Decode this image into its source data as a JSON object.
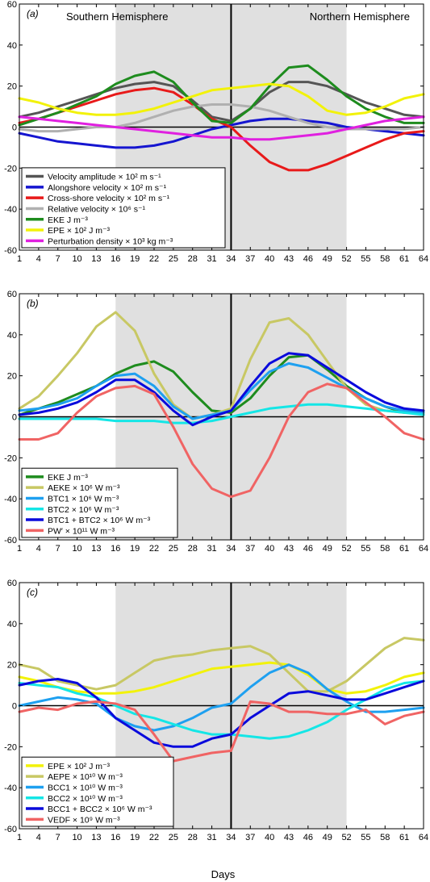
{
  "figure": {
    "xlabel": "Days",
    "x_ticks": [
      1,
      4,
      7,
      10,
      13,
      16,
      19,
      22,
      25,
      28,
      31,
      34,
      37,
      40,
      43,
      46,
      49,
      52,
      55,
      58,
      61,
      64
    ],
    "xlim": [
      1,
      64
    ],
    "ylim": [
      -60,
      60
    ],
    "y_ticks": [
      -60,
      -40,
      -20,
      0,
      20,
      40,
      60
    ],
    "shaded_days": [
      [
        16,
        34
      ],
      [
        34,
        52
      ]
    ],
    "divider_day": 34,
    "colors": {
      "shade": "#e0e0e0",
      "axis": "#000000"
    }
  },
  "chart_data": [
    {
      "type": "line",
      "panel_label": "(a)",
      "hemisphere_labels": [
        "Southern Hemisphere",
        "Northern Hemisphere"
      ],
      "legend_position": "bottom-left",
      "ylim": [
        -60,
        60
      ],
      "x": [
        1,
        4,
        7,
        10,
        13,
        16,
        19,
        22,
        25,
        28,
        31,
        34,
        37,
        40,
        43,
        46,
        49,
        52,
        55,
        58,
        61,
        64
      ],
      "series": [
        {
          "name": "Velocity amplitude × 10² m s⁻¹",
          "color": "#555555",
          "values": [
            5,
            7,
            10,
            13,
            16,
            19,
            21,
            22,
            20,
            13,
            5,
            3,
            9,
            17,
            22,
            22,
            20,
            16,
            12,
            9,
            6,
            5
          ]
        },
        {
          "name": "Alongshore velocity × 10² m s⁻¹",
          "color": "#1515d0",
          "values": [
            -3,
            -5,
            -7,
            -8,
            -9,
            -10,
            -10,
            -9,
            -7,
            -4,
            -1,
            1,
            3,
            4,
            4,
            3,
            2,
            0,
            -1,
            -2,
            -3,
            -4
          ]
        },
        {
          "name": "Cross-shore velocity × 10² m s⁻¹",
          "color": "#e81a1a",
          "values": [
            2,
            4,
            7,
            10,
            13,
            16,
            18,
            19,
            17,
            11,
            4,
            0,
            -9,
            -17,
            -21,
            -21,
            -18,
            -14,
            -10,
            -6,
            -3,
            -2
          ]
        },
        {
          "name": "Relative velocity × 10⁶ s⁻¹",
          "color": "#b0b0b0",
          "values": [
            -1,
            -2,
            -2,
            -1,
            0,
            0,
            2,
            5,
            8,
            10,
            11,
            11,
            10,
            8,
            5,
            2,
            0,
            -1,
            -1,
            -1,
            -1,
            0
          ]
        },
        {
          "name": "EKE J m⁻³",
          "color": "#1e8c1e",
          "values": [
            1,
            4,
            7,
            11,
            15,
            21,
            25,
            27,
            22,
            12,
            3,
            2,
            9,
            20,
            29,
            30,
            23,
            15,
            9,
            5,
            2,
            2
          ]
        },
        {
          "name": "EPE × 10² J m⁻³",
          "color": "#f2f20a",
          "values": [
            14,
            12,
            9,
            7,
            6,
            6,
            7,
            9,
            12,
            15,
            18,
            19,
            20,
            21,
            20,
            15,
            8,
            6,
            7,
            10,
            14,
            16
          ]
        },
        {
          "name": "Perturbation density × 10³ kg m⁻³",
          "color": "#e020e0",
          "values": [
            5,
            4,
            3,
            2,
            1,
            0,
            -1,
            -2,
            -3,
            -4,
            -5,
            -5,
            -6,
            -6,
            -5,
            -4,
            -3,
            -1,
            1,
            3,
            4,
            5
          ]
        }
      ]
    },
    {
      "type": "line",
      "panel_label": "(b)",
      "legend_position": "bottom-left",
      "ylim": [
        -60,
        60
      ],
      "x": [
        1,
        4,
        7,
        10,
        13,
        16,
        19,
        22,
        25,
        28,
        31,
        34,
        37,
        40,
        43,
        46,
        49,
        52,
        55,
        58,
        61,
        64
      ],
      "series": [
        {
          "name": "EKE J m⁻³",
          "color": "#1e8c1e",
          "values": [
            1,
            4,
            7,
            11,
            15,
            21,
            25,
            27,
            22,
            12,
            3,
            2,
            9,
            20,
            29,
            30,
            23,
            15,
            9,
            5,
            2,
            2
          ]
        },
        {
          "name": "AEKE × 10⁶ W m⁻³",
          "color": "#c8c864",
          "values": [
            4,
            10,
            20,
            31,
            44,
            51,
            42,
            21,
            6,
            -1,
            1,
            4,
            28,
            46,
            48,
            40,
            27,
            14,
            6,
            3,
            2,
            2
          ]
        },
        {
          "name": "BTC1 × 10⁶ W m⁻³",
          "color": "#1ea0f0",
          "values": [
            3,
            4,
            6,
            9,
            15,
            20,
            21,
            15,
            5,
            -1,
            1,
            3,
            13,
            22,
            26,
            24,
            19,
            14,
            9,
            5,
            3,
            2
          ]
        },
        {
          "name": "BTC2 × 10⁶ W m⁻³",
          "color": "#14e6e6",
          "values": [
            -1,
            -1,
            -1,
            -1,
            -1,
            -2,
            -2,
            -2,
            -3,
            -3,
            -2,
            0,
            2,
            4,
            5,
            6,
            6,
            5,
            4,
            3,
            2,
            1
          ]
        },
        {
          "name": "BTC1 + BTC2 × 10⁶ W m⁻³",
          "color": "#0a0adc",
          "values": [
            1,
            2,
            4,
            7,
            12,
            18,
            18,
            12,
            3,
            -4,
            0,
            3,
            15,
            26,
            31,
            30,
            24,
            18,
            12,
            7,
            4,
            3
          ]
        },
        {
          "name": "PW′ × 10¹¹ W m⁻³",
          "color": "#f06464",
          "values": [
            -11,
            -11,
            -8,
            2,
            10,
            14,
            15,
            11,
            -5,
            -23,
            -35,
            -39,
            -36,
            -20,
            0,
            12,
            16,
            14,
            7,
            0,
            -8,
            -11
          ]
        }
      ]
    },
    {
      "type": "line",
      "panel_label": "(c)",
      "legend_position": "bottom-left",
      "ylim": [
        -60,
        60
      ],
      "x": [
        1,
        4,
        7,
        10,
        13,
        16,
        19,
        22,
        25,
        28,
        31,
        34,
        37,
        40,
        43,
        46,
        49,
        52,
        55,
        58,
        61,
        64
      ],
      "series": [
        {
          "name": "EPE × 10² J m⁻³",
          "color": "#f2f20a",
          "values": [
            14,
            12,
            9,
            7,
            6,
            6,
            7,
            9,
            12,
            15,
            18,
            19,
            20,
            21,
            20,
            15,
            8,
            6,
            7,
            10,
            14,
            16
          ]
        },
        {
          "name": "AEPE × 10¹⁰ W m⁻³",
          "color": "#c8c864",
          "values": [
            20,
            18,
            12,
            10,
            8,
            10,
            16,
            22,
            24,
            25,
            27,
            28,
            29,
            25,
            16,
            7,
            7,
            12,
            20,
            28,
            33,
            32
          ]
        },
        {
          "name": "BCC1 × 10¹⁰ W m⁻³",
          "color": "#1ea0f0",
          "values": [
            0,
            2,
            4,
            3,
            1,
            -6,
            -10,
            -12,
            -10,
            -6,
            -1,
            1,
            9,
            16,
            20,
            16,
            8,
            2,
            -3,
            -3,
            -2,
            -1
          ]
        },
        {
          "name": "BCC2 × 10¹⁰ W m⁻³",
          "color": "#14e6e6",
          "values": [
            11,
            10,
            9,
            6,
            4,
            0,
            -4,
            -6,
            -9,
            -12,
            -14,
            -14,
            -15,
            -16,
            -15,
            -12,
            -8,
            -2,
            3,
            8,
            11,
            12
          ]
        },
        {
          "name": "BCC1 + BCC2 × 10⁶ W m⁻³",
          "color": "#0a0adc",
          "values": [
            10,
            12,
            13,
            11,
            4,
            -6,
            -12,
            -18,
            -20,
            -20,
            -16,
            -14,
            -6,
            0,
            6,
            7,
            5,
            3,
            3,
            6,
            9,
            12
          ]
        },
        {
          "name": "VEDF × 10⁹ W m⁻³",
          "color": "#f06464",
          "values": [
            -3,
            -1,
            -2,
            1,
            2,
            1,
            -2,
            -14,
            -27,
            -25,
            -23,
            -22,
            2,
            1,
            -3,
            -3,
            -4,
            -4,
            -2,
            -9,
            -5,
            -3
          ]
        }
      ]
    }
  ]
}
